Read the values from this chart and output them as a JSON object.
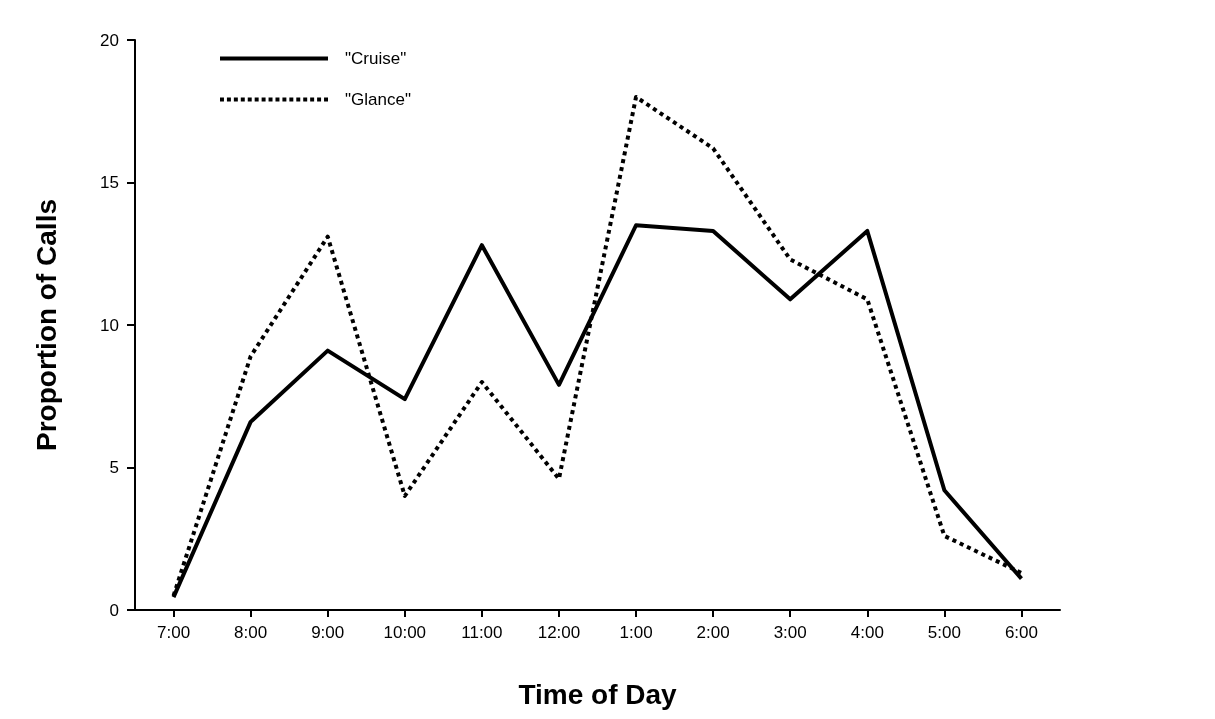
{
  "chart_data": {
    "type": "line",
    "xlabel": "Time of Day",
    "ylabel": "Proportion of Calls",
    "categories": [
      "7:00",
      "8:00",
      "9:00",
      "10:00",
      "11:00",
      "12:00",
      "1:00",
      "2:00",
      "3:00",
      "4:00",
      "5:00",
      "6:00"
    ],
    "series": [
      {
        "name": "\"Cruise\"",
        "color": "#000000",
        "line_style": "solid",
        "values": [
          0.45,
          6.6,
          9.1,
          7.4,
          12.8,
          7.9,
          13.5,
          13.3,
          10.9,
          13.3,
          4.2,
          1.1
        ]
      },
      {
        "name": "\"Glance\"",
        "color": "#000000",
        "line_style": "dotted",
        "values": [
          0.5,
          8.9,
          13.1,
          4.0,
          8.0,
          4.6,
          18.0,
          16.2,
          12.3,
          10.9,
          2.6,
          1.3
        ]
      }
    ],
    "ylim": [
      0,
      20
    ],
    "yticks": [
      0,
      5,
      10,
      15,
      20
    ],
    "grid": false,
    "legend": "top left",
    "marker": "none"
  }
}
